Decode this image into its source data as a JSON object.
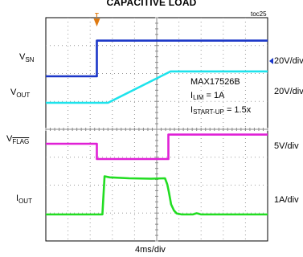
{
  "chart_data": {
    "type": "line",
    "title": "CAPACITIVE LOAD",
    "figure_id": "toc25",
    "x_scale": "4ms/div",
    "xlim": [
      0,
      40
    ],
    "panels": {
      "upper": {
        "channels": [
          {
            "name": "V_SN",
            "label_main": "V",
            "label_sub": "SN",
            "scale": "20V/div",
            "color": "#1a36c8",
            "points": [
              [
                0,
                0
              ],
              [
                9.2,
                0
              ],
              [
                9.2,
                2.4
              ],
              [
                40,
                2.4
              ]
            ]
          },
          {
            "name": "V_OUT",
            "label_main": "V",
            "label_sub": "OUT",
            "scale": "20V/div",
            "color": "#1ee3ec",
            "points": [
              [
                0,
                0
              ],
              [
                11.2,
                0
              ],
              [
                22.5,
                1.7
              ],
              [
                40,
                1.7
              ]
            ]
          }
        ]
      },
      "lower": {
        "channels": [
          {
            "name": "V_FLAG",
            "label_main": "V",
            "label_sub": "FLAG",
            "scale": "5V/div",
            "color": "#e020d6",
            "points": [
              [
                0,
                0
              ],
              [
                9.2,
                0
              ],
              [
                9.2,
                -1
              ],
              [
                22.1,
                -1
              ],
              [
                22.1,
                0.6
              ],
              [
                40,
                0.6
              ]
            ]
          },
          {
            "name": "I_OUT",
            "label_main": "I",
            "label_sub": "OUT",
            "scale": "1A/div",
            "color": "#22dd22",
            "points": [
              [
                0,
                0
              ],
              [
                10.2,
                0
              ],
              [
                10.6,
                1.9
              ],
              [
                11.5,
                1.85
              ],
              [
                15,
                1.8
              ],
              [
                19,
                1.78
              ],
              [
                21.5,
                1.8
              ],
              [
                21.9,
                1.5
              ],
              [
                22.2,
                1.1
              ],
              [
                22.6,
                0.5
              ],
              [
                23.1,
                0.2
              ],
              [
                23.6,
                0.05
              ],
              [
                24.5,
                0
              ],
              [
                26.5,
                0
              ],
              [
                27.2,
                0.06
              ],
              [
                28,
                0
              ],
              [
                40,
                0
              ]
            ]
          }
        ]
      }
    },
    "annotation": {
      "part": "MAX17526B",
      "ilim_main": "I",
      "ilim_sub": "LIM",
      "ilim_val": " = 1A",
      "istart_main": "I",
      "istart_sub": "START-UP",
      "istart_val": " = 1.5x"
    },
    "trigger_marker": "T"
  }
}
